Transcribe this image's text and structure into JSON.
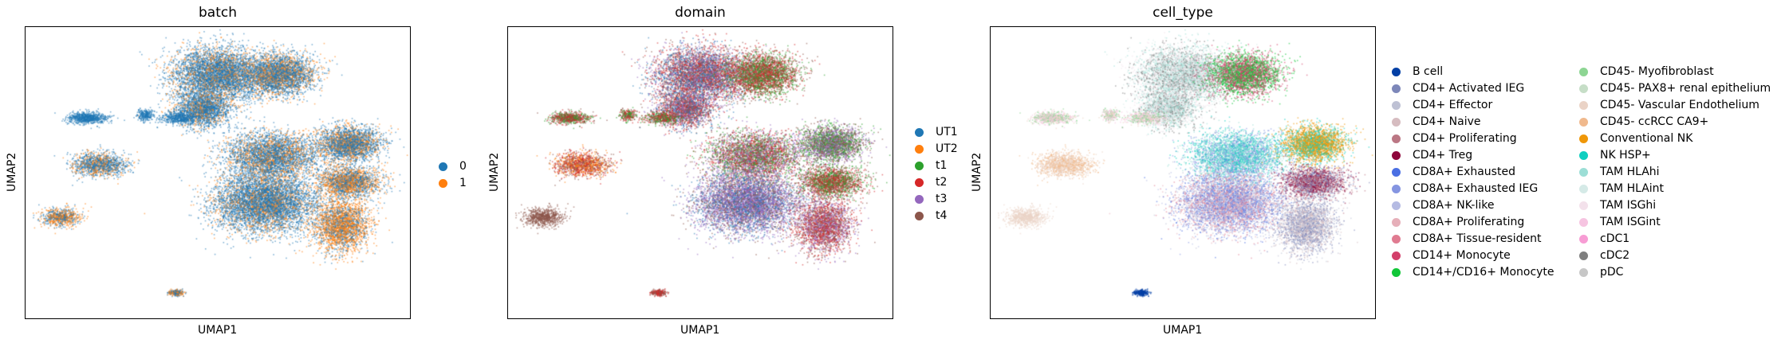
{
  "figure": {
    "panels": [
      {
        "title": "batch",
        "xlabel": "UMAP1",
        "ylabel": "UMAP2",
        "legend": [
          {
            "label": "0",
            "color": "#1f77b4"
          },
          {
            "label": "1",
            "color": "#ff7f0e"
          }
        ]
      },
      {
        "title": "domain",
        "xlabel": "UMAP1",
        "ylabel": "UMAP2",
        "legend": [
          {
            "label": "UT1",
            "color": "#1f77b4"
          },
          {
            "label": "UT2",
            "color": "#ff7f0e"
          },
          {
            "label": "t1",
            "color": "#2ca02c"
          },
          {
            "label": "t2",
            "color": "#d62728"
          },
          {
            "label": "t3",
            "color": "#9467bd"
          },
          {
            "label": "t4",
            "color": "#8c564b"
          }
        ]
      },
      {
        "title": "cell_type",
        "xlabel": "UMAP1",
        "ylabel": "UMAP2",
        "legend": [
          {
            "label": "B cell",
            "color": "#023fa5"
          },
          {
            "label": "CD4+ Activated IEG",
            "color": "#7d87b9"
          },
          {
            "label": "CD4+ Effector",
            "color": "#bec1d4"
          },
          {
            "label": "CD4+ Naive",
            "color": "#d6bcc0"
          },
          {
            "label": "CD4+ Proliferating",
            "color": "#bb7784"
          },
          {
            "label": "CD4+ Treg",
            "color": "#8e063b"
          },
          {
            "label": "CD8A+ Exhausted",
            "color": "#4a6fe3"
          },
          {
            "label": "CD8A+ Exhausted IEG",
            "color": "#8595e1"
          },
          {
            "label": "CD8A+ NK-like",
            "color": "#b5bbe3"
          },
          {
            "label": "CD8A+ Proliferating",
            "color": "#e6afb9"
          },
          {
            "label": "CD8A+ Tissue-resident",
            "color": "#e07b91"
          },
          {
            "label": "CD14+ Monocyte",
            "color": "#d33f6a"
          },
          {
            "label": "CD14+/CD16+ Monocyte",
            "color": "#11c638"
          },
          {
            "label": "CD45- Myofibroblast",
            "color": "#8dd593"
          },
          {
            "label": "CD45- PAX8+ renal epithelium",
            "color": "#c6dec7"
          },
          {
            "label": "CD45- Vascular Endothelium",
            "color": "#ead3c6"
          },
          {
            "label": "CD45- ccRCC CA9+",
            "color": "#f0b98d"
          },
          {
            "label": "Conventional NK",
            "color": "#ef9708"
          },
          {
            "label": "NK HSP+",
            "color": "#0fcfc0"
          },
          {
            "label": "TAM HLAhi",
            "color": "#9cded6"
          },
          {
            "label": "TAM HLAint",
            "color": "#d5eae7"
          },
          {
            "label": "TAM ISGhi",
            "color": "#f3e1eb"
          },
          {
            "label": "TAM ISGint",
            "color": "#f6c4e1"
          },
          {
            "label": "cDC1",
            "color": "#f79cd4"
          },
          {
            "label": "cDC2",
            "color": "#7f7f7f"
          },
          {
            "label": "pDC",
            "color": "#c7c7c7"
          }
        ]
      }
    ]
  },
  "chart_data": [
    {
      "type": "scatter",
      "title": "batch",
      "xlabel": "UMAP1",
      "ylabel": "UMAP2",
      "grid": false,
      "legend_placement": "right",
      "series": [
        {
          "name": "0",
          "color": "#1f77b4"
        },
        {
          "name": "1",
          "color": "#ff7f0e"
        }
      ]
    },
    {
      "type": "scatter",
      "title": "domain",
      "xlabel": "UMAP1",
      "ylabel": "UMAP2",
      "grid": false,
      "legend_placement": "right",
      "series": [
        {
          "name": "UT1",
          "color": "#1f77b4"
        },
        {
          "name": "UT2",
          "color": "#ff7f0e"
        },
        {
          "name": "t1",
          "color": "#2ca02c"
        },
        {
          "name": "t2",
          "color": "#d62728"
        },
        {
          "name": "t3",
          "color": "#9467bd"
        },
        {
          "name": "t4",
          "color": "#8c564b"
        }
      ]
    },
    {
      "type": "scatter",
      "title": "cell_type",
      "xlabel": "UMAP1",
      "ylabel": "UMAP2",
      "grid": false,
      "legend_placement": "right",
      "series": [
        {
          "name": "B cell",
          "color": "#023fa5"
        },
        {
          "name": "CD4+ Activated IEG",
          "color": "#7d87b9"
        },
        {
          "name": "CD4+ Effector",
          "color": "#bec1d4"
        },
        {
          "name": "CD4+ Naive",
          "color": "#d6bcc0"
        },
        {
          "name": "CD4+ Proliferating",
          "color": "#bb7784"
        },
        {
          "name": "CD4+ Treg",
          "color": "#8e063b"
        },
        {
          "name": "CD8A+ Exhausted",
          "color": "#4a6fe3"
        },
        {
          "name": "CD8A+ Exhausted IEG",
          "color": "#8595e1"
        },
        {
          "name": "CD8A+ NK-like",
          "color": "#b5bbe3"
        },
        {
          "name": "CD8A+ Proliferating",
          "color": "#e6afb9"
        },
        {
          "name": "CD8A+ Tissue-resident",
          "color": "#e07b91"
        },
        {
          "name": "CD14+ Monocyte",
          "color": "#d33f6a"
        },
        {
          "name": "CD14+/CD16+ Monocyte",
          "color": "#11c638"
        },
        {
          "name": "CD45- Myofibroblast",
          "color": "#8dd593"
        },
        {
          "name": "CD45- PAX8+ renal epithelium",
          "color": "#c6dec7"
        },
        {
          "name": "CD45- Vascular Endothelium",
          "color": "#ead3c6"
        },
        {
          "name": "CD45- ccRCC CA9+",
          "color": "#f0b98d"
        },
        {
          "name": "Conventional NK",
          "color": "#ef9708"
        },
        {
          "name": "NK HSP+",
          "color": "#0fcfc0"
        },
        {
          "name": "TAM HLAhi",
          "color": "#9cded6"
        },
        {
          "name": "TAM HLAint",
          "color": "#d5eae7"
        },
        {
          "name": "TAM ISGhi",
          "color": "#f3e1eb"
        },
        {
          "name": "TAM ISGint",
          "color": "#f6c4e1"
        },
        {
          "name": "cDC1",
          "color": "#f79cd4"
        },
        {
          "name": "cDC2",
          "color": "#7f7f7f"
        },
        {
          "name": "pDC",
          "color": "#c7c7c7"
        }
      ]
    }
  ]
}
